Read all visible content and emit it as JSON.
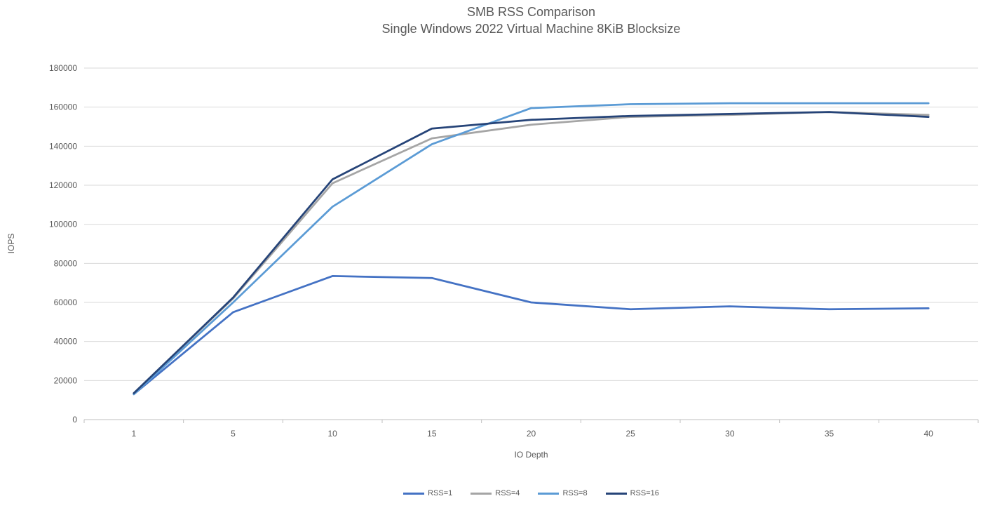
{
  "chart_data": {
    "type": "line",
    "title": "SMB RSS Comparison",
    "subtitle": "Single Windows 2022 Virtual Machine 8KiB Blocksize",
    "xlabel": "IO Depth",
    "ylabel": "IOPS",
    "categories": [
      "1",
      "5",
      "10",
      "15",
      "20",
      "25",
      "30",
      "35",
      "40"
    ],
    "y_ticks": [
      0,
      20000,
      40000,
      60000,
      80000,
      100000,
      120000,
      140000,
      160000,
      180000
    ],
    "ylim": [
      0,
      180000
    ],
    "grid": "horizontal",
    "legend_position": "bottom",
    "series": [
      {
        "name": "RSS=1",
        "color": "#4472C4",
        "values": [
          13000,
          55000,
          73500,
          72500,
          60000,
          56500,
          58000,
          56500,
          57000
        ]
      },
      {
        "name": "RSS=4",
        "color": "#A5A5A5",
        "values": [
          13500,
          62000,
          121000,
          144000,
          151000,
          155000,
          156000,
          157500,
          156000
        ]
      },
      {
        "name": "RSS=8",
        "color": "#5B9BD5",
        "values": [
          13000,
          60000,
          109000,
          141000,
          159500,
          161500,
          162000,
          162000,
          162000
        ]
      },
      {
        "name": "RSS=16",
        "color": "#264478",
        "values": [
          13500,
          62500,
          123000,
          149000,
          153500,
          155500,
          156500,
          157500,
          155000
        ]
      }
    ],
    "colors": {
      "title_text": "#595959",
      "axis_text": "#595959",
      "gridline": "#D9D9D9",
      "axis_line": "#BFBFBF",
      "background": "#FFFFFF"
    }
  }
}
